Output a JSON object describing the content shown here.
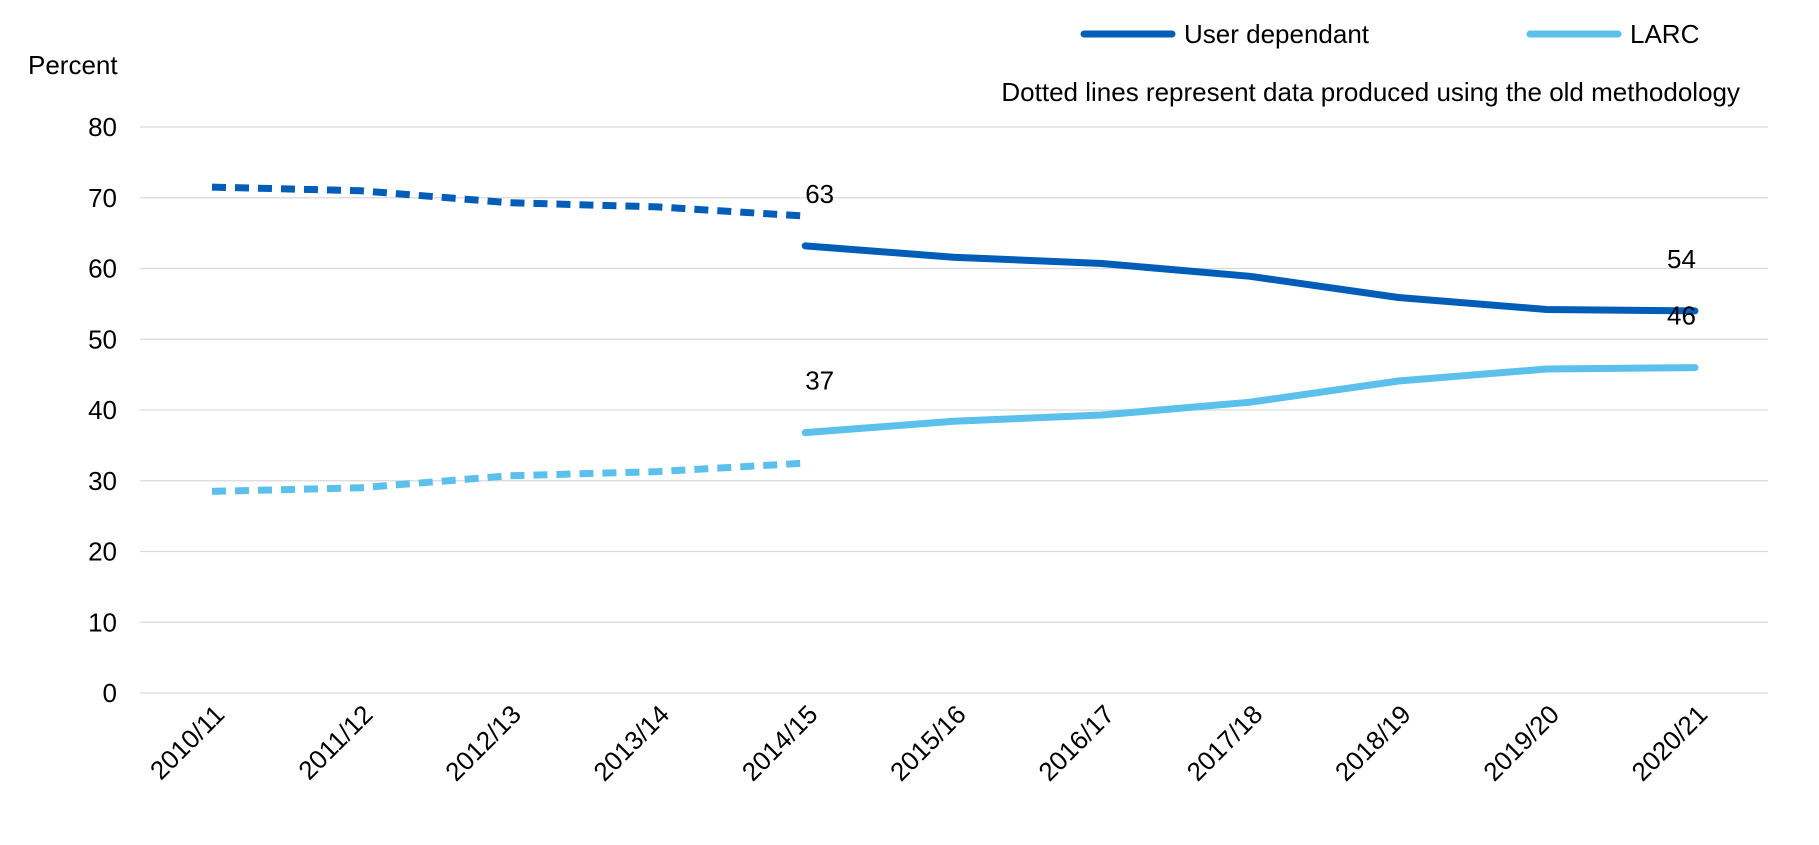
{
  "chart_data": {
    "type": "line",
    "title": "",
    "xlabel": "",
    "ylabel": "Percent",
    "ylim": [
      0,
      80
    ],
    "yticks": [
      0,
      10,
      20,
      30,
      40,
      50,
      60,
      70,
      80
    ],
    "grid": true,
    "legend_position": "top-right",
    "note": "Dotted lines represent data produced using the old methodology",
    "categories": [
      "2010/11",
      "2011/12",
      "2012/13",
      "2013/14",
      "2014/15",
      "2015/16",
      "2016/17",
      "2017/18",
      "2018/19",
      "2019/20",
      "2020/21"
    ],
    "series": [
      {
        "name": "User dependant",
        "color": "#005EB8",
        "old_methodology": [
          71.5,
          71.0,
          69.3,
          68.7,
          67.4,
          null,
          null,
          null,
          null,
          null,
          null
        ],
        "values": [
          null,
          null,
          null,
          null,
          63.2,
          61.6,
          60.7,
          58.9,
          55.9,
          54.2,
          54.0
        ]
      },
      {
        "name": "LARC",
        "color": "#5BC0EB",
        "old_methodology": [
          28.5,
          29.0,
          30.7,
          31.3,
          32.5,
          null,
          null,
          null,
          null,
          null,
          null
        ],
        "values": [
          null,
          null,
          null,
          null,
          36.8,
          38.4,
          39.3,
          41.1,
          44.1,
          45.8,
          46.0
        ]
      }
    ],
    "annotations": [
      {
        "series": "User dependant",
        "category": "2014/15",
        "text": "63"
      },
      {
        "series": "User dependant",
        "category": "2020/21",
        "text": "54"
      },
      {
        "series": "LARC",
        "category": "2014/15",
        "text": "37"
      },
      {
        "series": "LARC",
        "category": "2020/21",
        "text": "46"
      }
    ]
  }
}
